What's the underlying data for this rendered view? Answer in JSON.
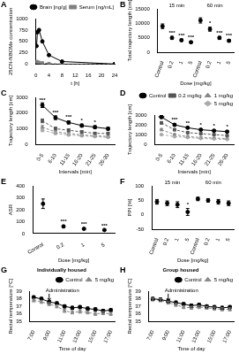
{
  "chart_data": [
    {
      "panel": "A",
      "type": "line",
      "grid": false,
      "legend": "top-right",
      "x": [
        0.25,
        0.5,
        1,
        2,
        4,
        8,
        24
      ],
      "xlim": [
        0,
        24
      ],
      "xticks": [
        0,
        4,
        8,
        12,
        16,
        20,
        24
      ],
      "ylim": [
        0,
        1000
      ],
      "yticks": [
        0,
        250,
        500,
        750,
        1000
      ],
      "x_label": "t [h]",
      "y_label": "25CN-NBOMe concentration",
      "series": [
        {
          "name": "Brain [ng/g]",
          "color": "#000000",
          "marker": "circle",
          "line_style": "solid",
          "values": [
            400,
            700,
            750,
            500,
            200,
            60,
            5
          ]
        },
        {
          "name": "Serum [ng/mL]",
          "color": "#808080",
          "marker": "square",
          "line_style": "dashed",
          "values": [
            60,
            50,
            40,
            30,
            15,
            5,
            0
          ]
        }
      ]
    },
    {
      "panel": "B",
      "type": "scatter",
      "grid": false,
      "categories": [
        "Control",
        "0.2",
        "1",
        "5",
        "Control",
        "0.2",
        "1",
        "5"
      ],
      "ylim": [
        0,
        15000
      ],
      "yticks": [
        0,
        5000,
        10000,
        15000
      ],
      "x_label": "Dose [mg/kg]",
      "y_label": "Total trajectory length [cm]",
      "significance": [
        null,
        "***",
        "***",
        "***",
        null,
        "*",
        "***",
        "***"
      ],
      "series": [
        {
          "name": "15 min",
          "color": "#000000",
          "marker": "circle",
          "values": [
            9000,
            5000,
            4200,
            3500,
            null,
            null,
            null,
            null
          ],
          "errors": [
            800,
            500,
            400,
            300,
            null,
            null,
            null,
            null
          ]
        },
        {
          "name": "60 min",
          "color": "#000000",
          "marker": "circle",
          "values": [
            null,
            null,
            null,
            null,
            11000,
            8000,
            5000,
            4000
          ],
          "errors": [
            null,
            null,
            null,
            null,
            900,
            700,
            500,
            400
          ]
        }
      ]
    },
    {
      "panel": "C",
      "type": "line",
      "grid": false,
      "categories": [
        "0-5",
        "6-10",
        "11-15",
        "16-20",
        "21-25",
        "26-30"
      ],
      "ylim": [
        0,
        3000
      ],
      "yticks": [
        0,
        1000,
        2000,
        3000
      ],
      "x_label": "Intervals [min]",
      "y_label": "Trajectory length [cm]",
      "significance": [
        "***",
        "***",
        "***",
        "*",
        "*",
        null
      ],
      "series": [
        {
          "color": "#000000",
          "marker": "circle",
          "line_style": "solid",
          "values": [
            2500,
            1700,
            1400,
            1200,
            1100,
            1000
          ],
          "errors": [
            150,
            120,
            100,
            100,
            90,
            90
          ]
        },
        {
          "color": "#555555",
          "marker": "square",
          "line_style": "dashed",
          "values": [
            1500,
            1000,
            900,
            800,
            700,
            700
          ],
          "errors": [
            120,
            100,
            90,
            80,
            70,
            70
          ]
        },
        {
          "color": "#888888",
          "marker": "triangle",
          "line_style": "dashed",
          "values": [
            1100,
            800,
            700,
            600,
            550,
            500
          ],
          "errors": [
            100,
            80,
            70,
            60,
            60,
            50
          ]
        },
        {
          "color": "#aaaaaa",
          "marker": "diamond",
          "line_style": "dashed",
          "values": [
            900,
            700,
            600,
            550,
            500,
            450
          ],
          "errors": [
            90,
            70,
            60,
            60,
            50,
            50
          ]
        }
      ]
    },
    {
      "panel": "D",
      "type": "line",
      "grid": false,
      "legend": "top-right",
      "categories": [
        "0-5",
        "6-10",
        "11-15",
        "16-20",
        "21-25",
        "26-30"
      ],
      "ylim": [
        0,
        3000
      ],
      "yticks": [
        0,
        1000,
        2000,
        3000
      ],
      "x_label": "Intervals [min]",
      "y_label": "Trajectory length [cm]",
      "significance": [
        "***",
        "***",
        "**",
        "*",
        "*",
        "*"
      ],
      "series": [
        {
          "name": "Control",
          "color": "#000000",
          "marker": "circle",
          "line_style": "solid",
          "values": [
            2800,
            2000,
            1700,
            1500,
            1400,
            1300
          ],
          "errors": [
            150,
            120,
            100,
            100,
            90,
            90
          ]
        },
        {
          "name": "0.2 mg/kg",
          "color": "#555555",
          "marker": "square",
          "line_style": "dashed",
          "values": [
            2200,
            1500,
            1200,
            1100,
            1000,
            900
          ],
          "errors": [
            130,
            110,
            90,
            80,
            80,
            70
          ]
        },
        {
          "name": "1 mg/kg",
          "color": "#888888",
          "marker": "triangle",
          "line_style": "dashed",
          "values": [
            1500,
            1000,
            800,
            700,
            650,
            600
          ],
          "errors": [
            110,
            90,
            70,
            60,
            60,
            50
          ]
        },
        {
          "name": "5 mg/kg",
          "color": "#aaaaaa",
          "marker": "diamond",
          "line_style": "dashed",
          "values": [
            1000,
            800,
            700,
            600,
            550,
            500
          ],
          "errors": [
            90,
            70,
            60,
            60,
            50,
            50
          ]
        }
      ]
    },
    {
      "panel": "E",
      "type": "scatter",
      "grid": false,
      "categories": [
        "Control",
        "0.2",
        "1",
        "5"
      ],
      "ylim": [
        0,
        400
      ],
      "yticks": [
        0,
        100,
        200,
        300,
        400
      ],
      "x_label": "Dose [mg/kg]",
      "y_label": "ASR",
      "significance": [
        null,
        "***",
        "***",
        "***"
      ],
      "series": [
        {
          "color": "#000000",
          "marker": "circle",
          "values": [
            250,
            60,
            40,
            30
          ],
          "errors": [
            40,
            10,
            8,
            5
          ]
        }
      ]
    },
    {
      "panel": "F",
      "type": "scatter",
      "grid": false,
      "categories": [
        "Control",
        "0.2",
        "1",
        "5",
        "Control",
        "0.2",
        "1",
        "5"
      ],
      "ylim": [
        -50,
        100
      ],
      "yticks": [
        -50,
        0,
        50,
        100
      ],
      "x_label": "Dose [mg/kg]",
      "y_label": "PPI [%]",
      "significance": [
        null,
        null,
        null,
        "*",
        null,
        null,
        null,
        null
      ],
      "series": [
        {
          "name": "15 min",
          "color": "#000000",
          "marker": "circle",
          "values": [
            45,
            40,
            35,
            10,
            null,
            null,
            null,
            null
          ],
          "errors": [
            8,
            8,
            10,
            12,
            null,
            null,
            null,
            null
          ]
        },
        {
          "name": "60 min",
          "color": "#000000",
          "marker": "circle",
          "values": [
            null,
            null,
            null,
            null,
            55,
            50,
            45,
            40
          ],
          "errors": [
            null,
            null,
            null,
            null,
            6,
            6,
            8,
            8
          ]
        }
      ]
    },
    {
      "panel": "G",
      "type": "line",
      "grid": false,
      "legend": "top-right",
      "title": "Individually housed",
      "categories": [
        "7:00",
        null,
        "9:00",
        null,
        "11:00",
        null,
        "13:00",
        null,
        "15:00",
        null,
        "17:00"
      ],
      "ylim": [
        35,
        39
      ],
      "yticks": [
        35,
        36,
        37,
        38,
        39
      ],
      "x_label": "Time of day",
      "y_label": "Rectal temperature [°C]",
      "annotations": [
        {
          "text": "Administration",
          "x": "9:00",
          "y": 38.8
        }
      ],
      "series": [
        {
          "name": "Control",
          "color": "#000000",
          "marker": "circle",
          "line_style": "solid",
          "values": [
            38.2,
            38.0,
            37.6,
            37.4,
            37.0,
            36.8,
            36.9,
            36.7,
            36.6,
            36.4,
            36.5
          ],
          "errors": [
            0.2,
            0.2,
            0.2,
            0.2,
            0.2,
            0.2,
            0.2,
            0.2,
            0.2,
            0.2,
            0.2
          ]
        },
        {
          "name": "5 mg/kg",
          "color": "#888888",
          "marker": "triangle",
          "line_style": "dashed",
          "values": [
            37.8,
            37.6,
            37.3,
            37.0,
            36.4,
            36.2,
            36.3,
            36.2,
            36.0,
            36.1,
            36.0
          ],
          "errors": [
            0.2,
            0.2,
            0.2,
            0.2,
            0.2,
            0.2,
            0.2,
            0.2,
            0.2,
            0.2,
            0.2
          ]
        }
      ]
    },
    {
      "panel": "H",
      "type": "line",
      "grid": false,
      "legend": "top-right",
      "title": "Group housed",
      "categories": [
        "7:00",
        null,
        "9:00",
        null,
        "11:00",
        null,
        "13:00",
        null,
        "15:00",
        null,
        "17:00"
      ],
      "ylim": [
        35,
        39
      ],
      "yticks": [
        35,
        36,
        37,
        38,
        39
      ],
      "x_label": "Time of day",
      "y_label": "Rectal temperature [°C]",
      "annotations": [
        {
          "text": "Administration",
          "x": "9:00",
          "y": 38.8
        }
      ],
      "series": [
        {
          "name": "Control",
          "color": "#000000",
          "marker": "circle",
          "line_style": "solid",
          "values": [
            38.0,
            37.9,
            37.7,
            37.5,
            37.3,
            37.1,
            37.2,
            37.0,
            36.9,
            36.8,
            36.9
          ],
          "errors": [
            0.2,
            0.2,
            0.2,
            0.2,
            0.2,
            0.2,
            0.2,
            0.2,
            0.2,
            0.2,
            0.2
          ]
        },
        {
          "name": "5 mg/kg",
          "color": "#888888",
          "marker": "triangle",
          "line_style": "dashed",
          "values": [
            37.9,
            37.8,
            37.5,
            37.2,
            36.9,
            36.8,
            36.9,
            36.8,
            36.7,
            36.6,
            36.6
          ],
          "errors": [
            0.2,
            0.2,
            0.2,
            0.2,
            0.2,
            0.2,
            0.2,
            0.2,
            0.2,
            0.2,
            0.2
          ]
        }
      ]
    }
  ]
}
